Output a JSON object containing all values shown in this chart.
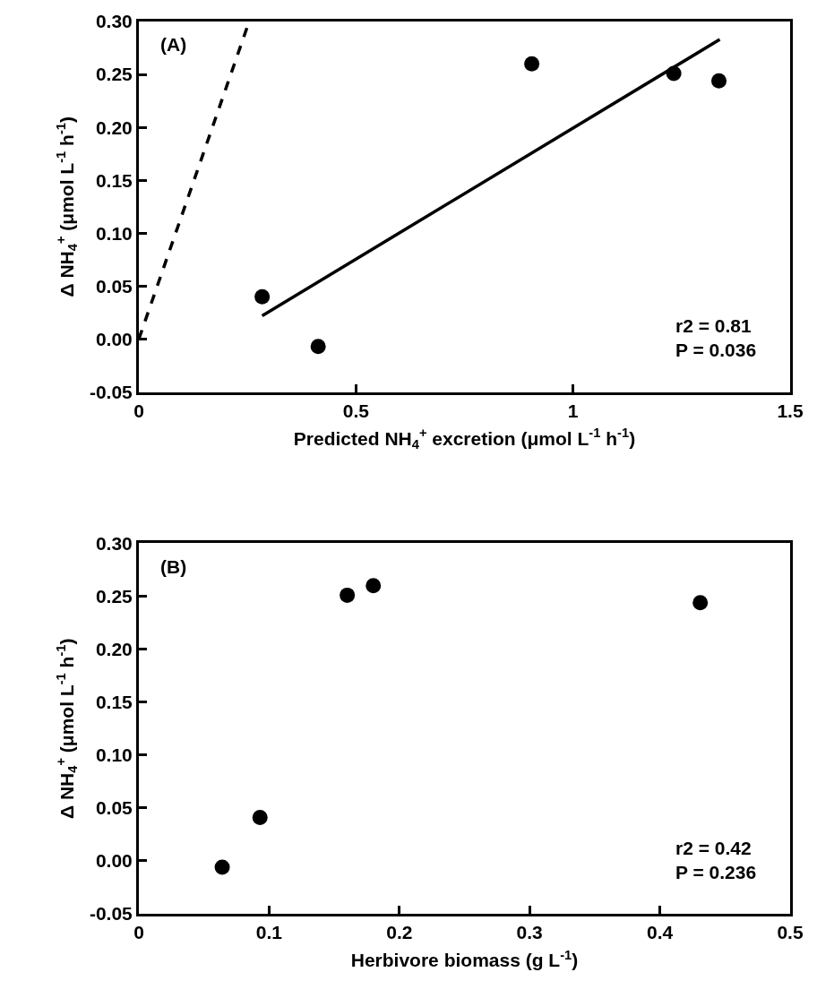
{
  "chart_data": [
    {
      "type": "scatter",
      "xlabel": "Predicted NH$_{4}$$^{+}$ excretion (μmol L$^{-1}$ h$^{-1}$)",
      "ylabel": "Δ NH$_{4}$$^{+}$ (μmol L$^{-1}$ h$^{-1}$)",
      "annotations": [
        "(A)",
        "r2 = 0.81\nP = 0.036"
      ],
      "x": [
        0.284,
        0.413,
        0.905,
        1.232,
        1.336
      ],
      "series": [
        {
          "color": "#000000",
          "marker": "circle",
          "values": [
            0.04,
            -0.007,
            0.26,
            0.251,
            0.244
          ]
        },
        {
          "type": "line",
          "color": "#000000",
          "line_style": "solid",
          "marker": "none",
          "x": [
            0.284,
            1.338
          ],
          "values": [
            0.022,
            0.283
          ]
        },
        {
          "type": "line",
          "color": "#000000",
          "line_style": "dashed",
          "marker": "none",
          "x": [
            0,
            0.254
          ],
          "values": [
            0,
            0.3
          ]
        }
      ],
      "xlim": [
        0,
        1.5
      ],
      "xticks": [
        0,
        0.5,
        1,
        1.5
      ],
      "ylim": [
        -0.05,
        0.3
      ],
      "yticks": [
        {
          "value": -0.05,
          "label": "-0.05"
        },
        {
          "value": 0,
          "label": "0.00"
        },
        {
          "value": 0.05,
          "label": "0.05"
        },
        {
          "value": 0.1,
          "label": "0.10"
        },
        {
          "value": 0.15,
          "label": "0.15"
        },
        {
          "value": 0.2,
          "label": "0.20"
        },
        {
          "value": 0.25,
          "label": "0.25"
        },
        {
          "value": 0.3,
          "label": "0.30"
        }
      ]
    },
    {
      "type": "scatter",
      "xlabel": "Herbivore biomass (g L$^{-1}$)",
      "ylabel": "Δ NH$_{4}$$^{+}$ (μmol L$^{-1}$ h$^{-1}$)",
      "annotations": [
        "(B)",
        "r2 = 0.42\nP = 0.236"
      ],
      "x": [
        0.064,
        0.093,
        0.16,
        0.18,
        0.431
      ],
      "series": [
        {
          "color": "#000000",
          "marker": "circle",
          "values": [
            -0.006,
            0.041,
            0.251,
            0.26,
            0.244
          ]
        }
      ],
      "xlim": [
        0,
        0.5
      ],
      "xticks": [
        0,
        0.1,
        0.2,
        0.3,
        0.4,
        0.5
      ],
      "ylim": [
        -0.05,
        0.3
      ],
      "yticks": [
        {
          "value": -0.05,
          "label": "-0.05"
        },
        {
          "value": 0,
          "label": "0.00"
        },
        {
          "value": 0.05,
          "label": "0.05"
        },
        {
          "value": 0.1,
          "label": "0.10"
        },
        {
          "value": 0.15,
          "label": "0.15"
        },
        {
          "value": 0.2,
          "label": "0.20"
        },
        {
          "value": 0.25,
          "label": "0.25"
        },
        {
          "value": 0.3,
          "label": "0.30"
        }
      ]
    }
  ]
}
